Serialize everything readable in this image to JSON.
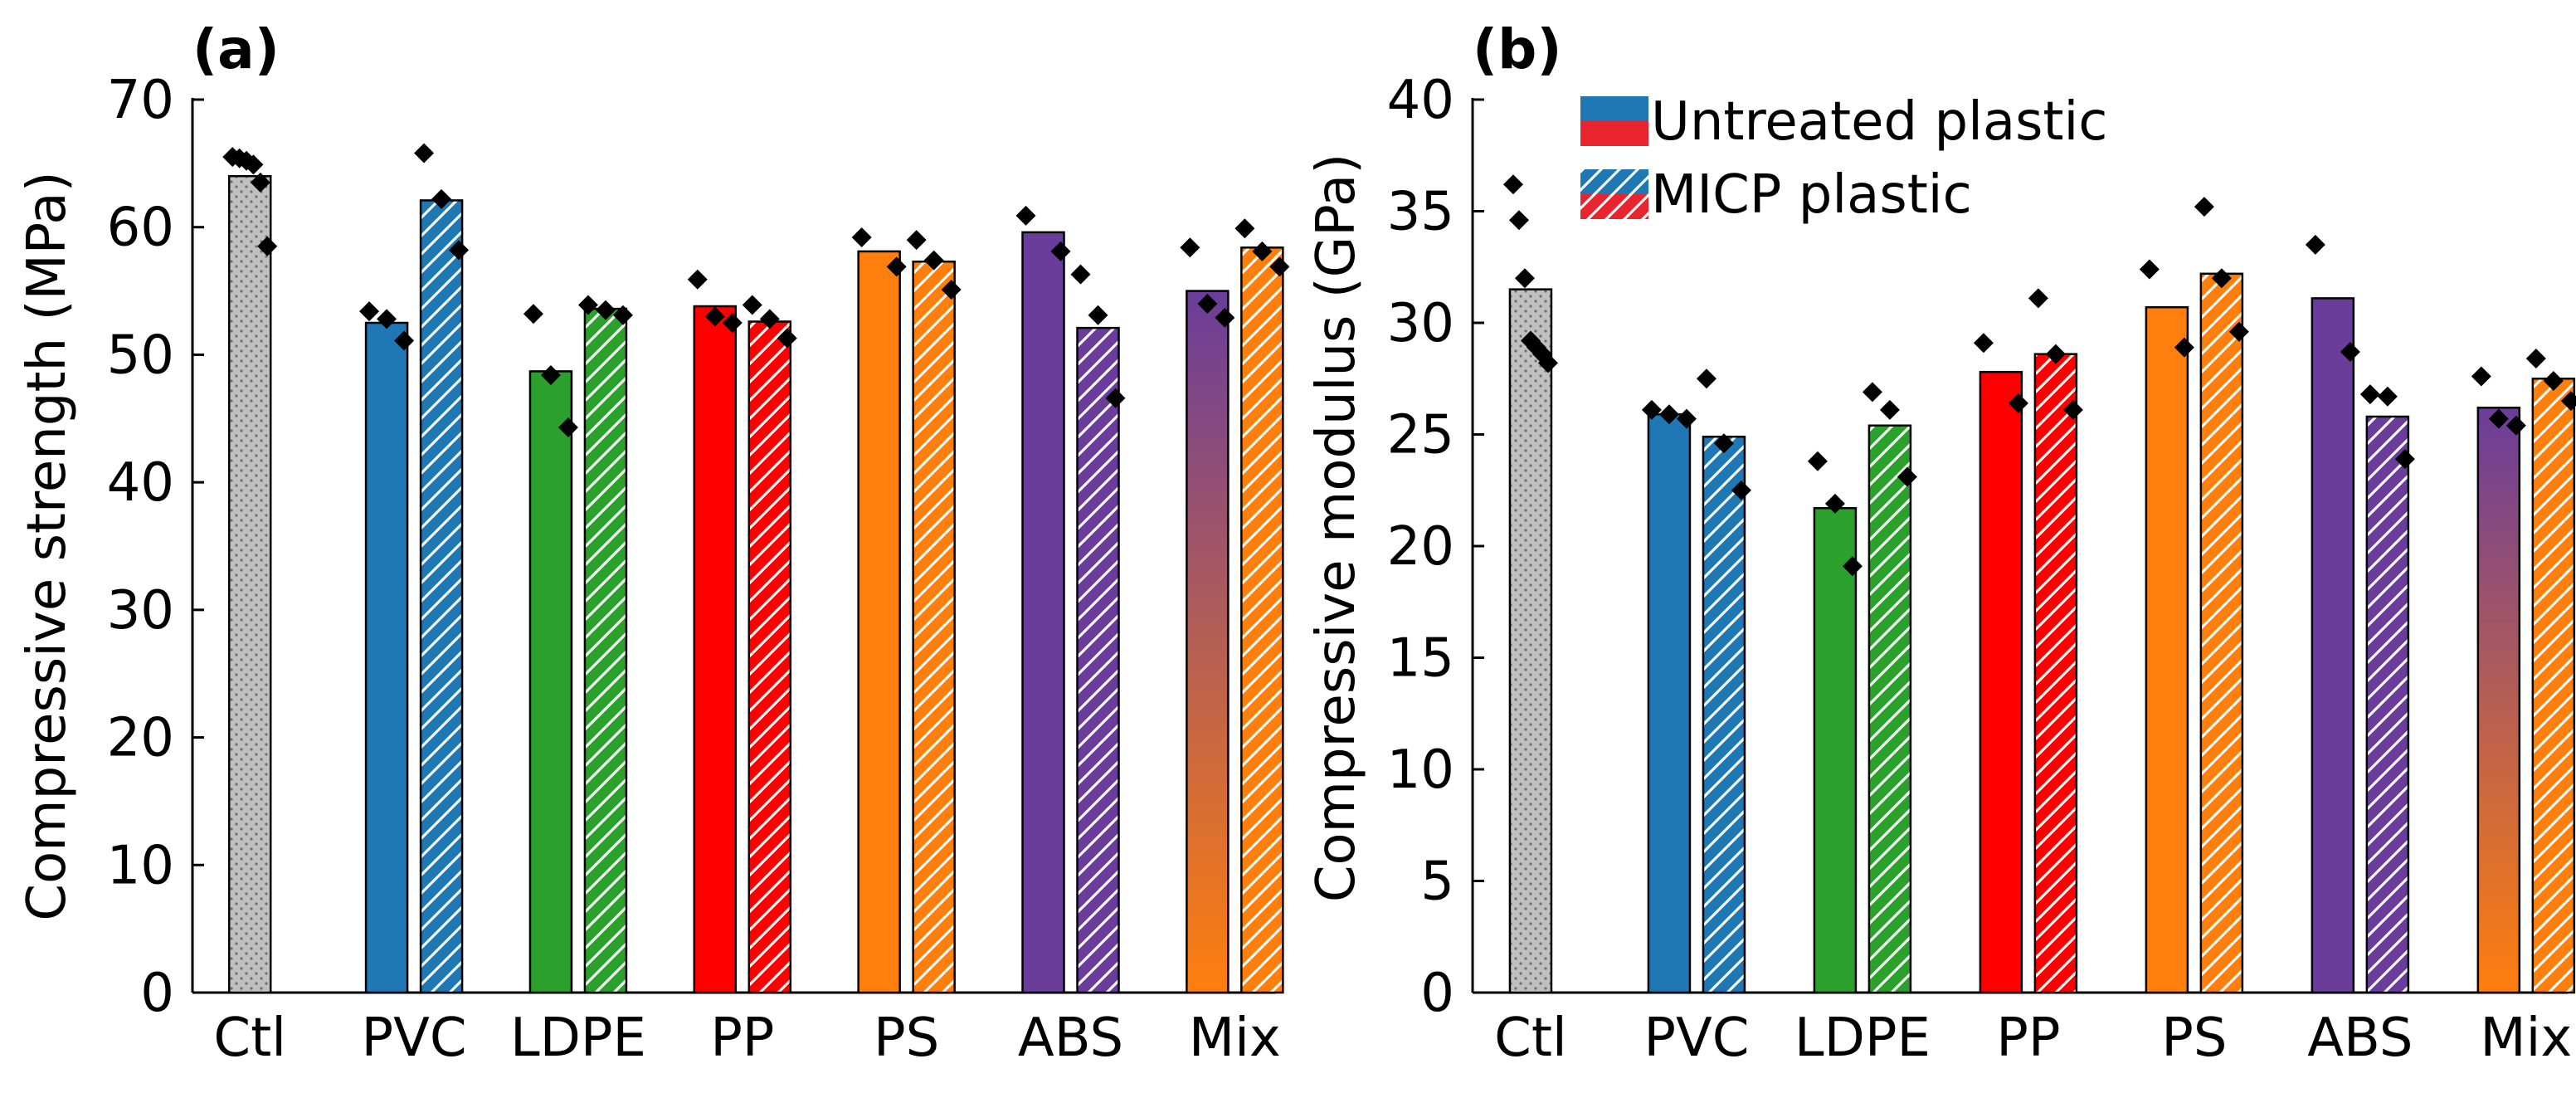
{
  "colors": {
    "Ctl": "#c0c0c0",
    "PVC": "#1f77b4",
    "LDPE": "#2ca02c",
    "PP": "#ff0000",
    "PS": "#ff7f0e",
    "ABS": "#6a3d9a",
    "Mix_top": "#6a3d9a",
    "Mix_bottom": "#ff7f0e",
    "legend_untreated_top": "#1f77b4",
    "legend_untreated_bottom": "#e8242e",
    "legend_micp_top": "#1f77b4",
    "legend_micp_bottom": "#e8242e",
    "marker": "#000000"
  },
  "legend": {
    "untreated_label": "Untreated plastic",
    "micp_label": "MICP plastic"
  },
  "chart_data": [
    {
      "type": "bar",
      "panel_label": "(a)",
      "title": "",
      "xlabel": "",
      "ylabel": "Compressive strength (MPa)",
      "ylim": [
        0,
        70
      ],
      "yticks": [
        0,
        10,
        20,
        30,
        40,
        50,
        60,
        70
      ],
      "categories": [
        "Ctl",
        "PVC",
        "LDPE",
        "PP",
        "PS",
        "ABS",
        "Mix"
      ],
      "series": [
        {
          "name": "Untreated plastic",
          "values": [
            64.0,
            52.5,
            48.7,
            53.8,
            58.1,
            59.6,
            55.0
          ]
        },
        {
          "name": "MICP plastic",
          "values": [
            null,
            62.1,
            53.6,
            52.6,
            57.3,
            52.1,
            58.4
          ]
        }
      ],
      "points": [
        {
          "category": "Ctl",
          "series": "Untreated plastic",
          "values": [
            65.5,
            65.4,
            65.2,
            64.9,
            63.5,
            58.5
          ]
        },
        {
          "category": "PVC",
          "series": "Untreated plastic",
          "values": [
            53.4,
            52.8,
            51.1
          ]
        },
        {
          "category": "PVC",
          "series": "MICP plastic",
          "values": [
            65.8,
            62.2,
            58.2
          ]
        },
        {
          "category": "LDPE",
          "series": "Untreated plastic",
          "values": [
            53.2,
            48.4,
            44.3
          ]
        },
        {
          "category": "LDPE",
          "series": "MICP plastic",
          "values": [
            53.9,
            53.5,
            53.1
          ]
        },
        {
          "category": "PP",
          "series": "Untreated plastic",
          "values": [
            55.9,
            53.0,
            52.5
          ]
        },
        {
          "category": "PP",
          "series": "MICP plastic",
          "values": [
            53.9,
            52.8,
            51.3
          ]
        },
        {
          "category": "PS",
          "series": "Untreated plastic",
          "values": [
            59.2,
            56.9
          ]
        },
        {
          "category": "PS",
          "series": "MICP plastic",
          "values": [
            59.0,
            57.4,
            55.1
          ]
        },
        {
          "category": "ABS",
          "series": "Untreated plastic",
          "values": [
            60.9,
            58.1
          ]
        },
        {
          "category": "ABS",
          "series": "MICP plastic",
          "values": [
            56.3,
            53.1,
            46.6
          ]
        },
        {
          "category": "Mix",
          "series": "Untreated plastic",
          "values": [
            58.4,
            54.0,
            52.9
          ]
        },
        {
          "category": "Mix",
          "series": "MICP plastic",
          "values": [
            59.9,
            58.1,
            56.9
          ]
        }
      ]
    },
    {
      "type": "bar",
      "panel_label": "(b)",
      "title": "",
      "xlabel": "",
      "ylabel": "Compressive modulus (GPa)",
      "ylim": [
        0,
        40
      ],
      "yticks": [
        0,
        5,
        10,
        15,
        20,
        25,
        30,
        35,
        40
      ],
      "categories": [
        "Ctl",
        "PVC",
        "LDPE",
        "PP",
        "PS",
        "ABS",
        "Mix"
      ],
      "series": [
        {
          "name": "Untreated plastic",
          "values": [
            31.5,
            25.9,
            21.7,
            27.8,
            30.7,
            31.1,
            26.2
          ]
        },
        {
          "name": "MICP plastic",
          "values": [
            null,
            24.9,
            25.4,
            28.6,
            32.2,
            25.8,
            27.5
          ]
        }
      ],
      "points": [
        {
          "category": "Ctl",
          "series": "Untreated plastic",
          "values": [
            36.2,
            34.6,
            32.0,
            29.2,
            28.9,
            28.6,
            28.2
          ]
        },
        {
          "category": "PVC",
          "series": "Untreated plastic",
          "values": [
            26.1,
            25.9,
            25.7
          ]
        },
        {
          "category": "PVC",
          "series": "MICP plastic",
          "values": [
            27.5,
            24.6,
            22.5
          ]
        },
        {
          "category": "LDPE",
          "series": "Untreated plastic",
          "values": [
            23.8,
            21.9,
            19.1
          ]
        },
        {
          "category": "LDPE",
          "series": "MICP plastic",
          "values": [
            26.9,
            26.1,
            23.1
          ]
        },
        {
          "category": "PP",
          "series": "Untreated plastic",
          "values": [
            29.1,
            26.4
          ]
        },
        {
          "category": "PP",
          "series": "MICP plastic",
          "values": [
            31.1,
            28.6,
            26.1
          ]
        },
        {
          "category": "PS",
          "series": "Untreated plastic",
          "values": [
            32.4,
            28.9
          ]
        },
        {
          "category": "PS",
          "series": "MICP plastic",
          "values": [
            35.2,
            32.0,
            29.6
          ]
        },
        {
          "category": "ABS",
          "series": "Untreated plastic",
          "values": [
            33.5,
            28.7
          ]
        },
        {
          "category": "ABS",
          "series": "MICP plastic",
          "values": [
            26.8,
            26.7,
            23.9
          ]
        },
        {
          "category": "Mix",
          "series": "Untreated plastic",
          "values": [
            27.6,
            25.7,
            25.4
          ]
        },
        {
          "category": "Mix",
          "series": "MICP plastic",
          "values": [
            28.4,
            27.4,
            26.5
          ]
        }
      ]
    }
  ]
}
